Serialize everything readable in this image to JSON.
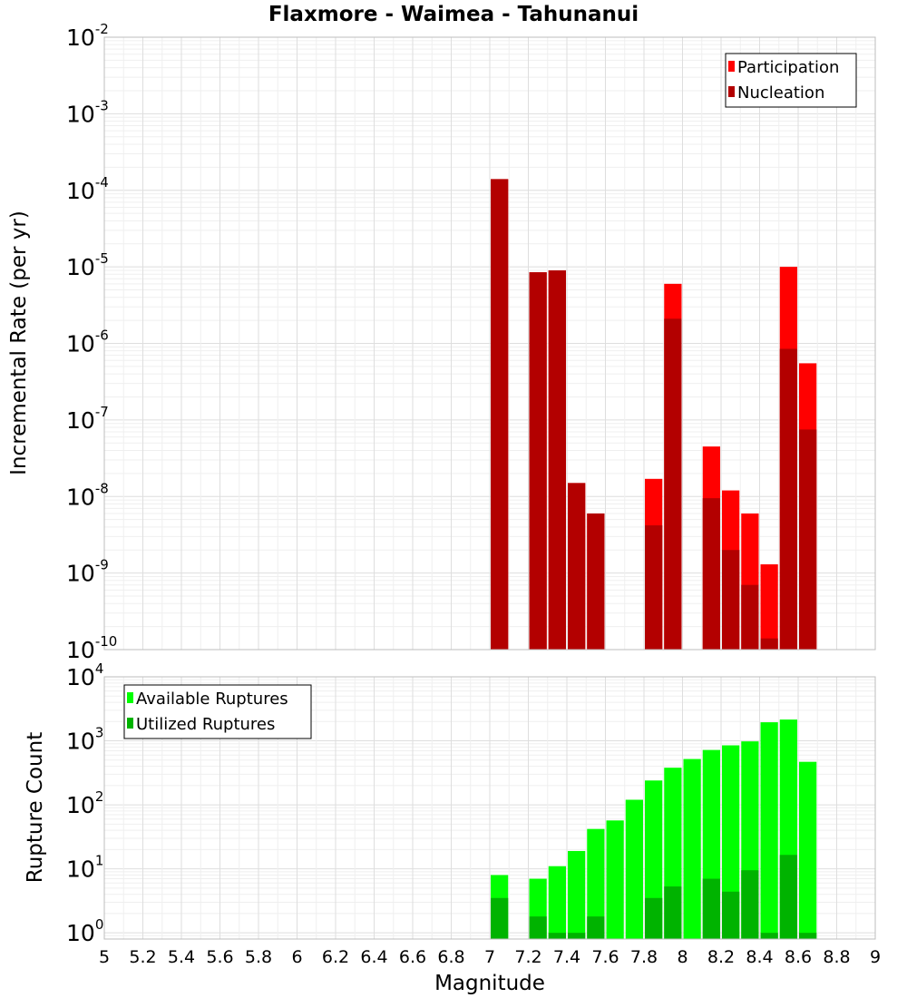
{
  "chart_data": [
    {
      "type": "bar",
      "title": "Flaxmore - Waimea - Tahunanui",
      "xlabel": "",
      "ylabel": "Incremental Rate (per yr)",
      "yscale": "log",
      "ylim": [
        1e-10,
        0.01
      ],
      "xlim": [
        5,
        9
      ],
      "bar_width": 0.1,
      "grid": true,
      "legend_position": "top-right",
      "yticks": [
        {
          "base": "10",
          "exp": "-10"
        },
        {
          "base": "10",
          "exp": "-9"
        },
        {
          "base": "10",
          "exp": "-8"
        },
        {
          "base": "10",
          "exp": "-7"
        },
        {
          "base": "10",
          "exp": "-6"
        },
        {
          "base": "10",
          "exp": "-5"
        },
        {
          "base": "10",
          "exp": "-4"
        },
        {
          "base": "10",
          "exp": "-3"
        },
        {
          "base": "10",
          "exp": "-2"
        }
      ],
      "series": [
        {
          "name": "Participation",
          "color": "#ff0000",
          "x": [
            7.05,
            7.25,
            7.35,
            7.45,
            7.55,
            7.85,
            7.95,
            8.15,
            8.25,
            8.35,
            8.45,
            8.55,
            8.65
          ],
          "values": [
            0.00014,
            8.5e-06,
            9e-06,
            1.5e-08,
            6e-09,
            1.7e-08,
            6e-06,
            4.5e-08,
            1.2e-08,
            6e-09,
            1.3e-09,
            1e-05,
            5.5e-07
          ]
        },
        {
          "name": "Nucleation",
          "color": "#b30000",
          "x": [
            7.05,
            7.25,
            7.35,
            7.45,
            7.55,
            7.85,
            7.95,
            8.15,
            8.25,
            8.35,
            8.45,
            8.55,
            8.65
          ],
          "values": [
            0.00014,
            8.5e-06,
            9e-06,
            1.5e-08,
            6e-09,
            4.2e-09,
            2.1e-06,
            9.5e-09,
            2e-09,
            7e-10,
            1.4e-10,
            8.5e-07,
            7.5e-08
          ]
        }
      ]
    },
    {
      "type": "bar",
      "title": "",
      "xlabel": "Magnitude",
      "ylabel": "Rupture Count",
      "yscale": "log",
      "ylim": [
        0.8,
        10000
      ],
      "xlim": [
        5,
        9
      ],
      "bar_width": 0.1,
      "grid": true,
      "legend_position": "top-left",
      "xticks": [
        "5",
        "5.2",
        "5.4",
        "5.6",
        "5.8",
        "6",
        "6.2",
        "6.4",
        "6.6",
        "6.8",
        "7",
        "7.2",
        "7.4",
        "7.6",
        "7.8",
        "8",
        "8.2",
        "8.4",
        "8.6",
        "8.8",
        "9"
      ],
      "yticks": [
        {
          "base": "10",
          "exp": "0"
        },
        {
          "base": "10",
          "exp": "1"
        },
        {
          "base": "10",
          "exp": "2"
        },
        {
          "base": "10",
          "exp": "3"
        },
        {
          "base": "10",
          "exp": "4"
        }
      ],
      "series": [
        {
          "name": "Available Ruptures",
          "color": "#00ff00",
          "x": [
            7.05,
            7.25,
            7.35,
            7.45,
            7.55,
            7.65,
            7.75,
            7.85,
            7.95,
            8.05,
            8.15,
            8.25,
            8.35,
            8.45,
            8.55,
            8.65
          ],
          "values": [
            8,
            7,
            11,
            19,
            42,
            57,
            120,
            240,
            380,
            520,
            720,
            850,
            980,
            1950,
            2150,
            470
          ]
        },
        {
          "name": "Utilized Ruptures",
          "color": "#00b300",
          "x": [
            7.05,
            7.25,
            7.35,
            7.45,
            7.55,
            7.85,
            7.95,
            8.15,
            8.25,
            8.35,
            8.45,
            8.55,
            8.65
          ],
          "values": [
            3.5,
            1.8,
            1,
            1,
            1.8,
            3.5,
            5.3,
            7,
            4.4,
            9.5,
            1,
            16.5,
            1
          ]
        }
      ]
    }
  ]
}
